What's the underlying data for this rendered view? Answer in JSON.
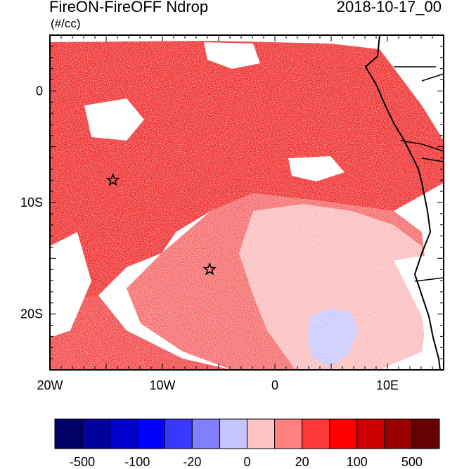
{
  "title": "FireON-FireOFF Ndrop",
  "date": "2018-10-17_00",
  "units": "(#/cc)",
  "map": {
    "lon_range": [
      -20,
      15
    ],
    "lat_range": [
      -25,
      5
    ],
    "lat_labels": [
      {
        "value": 0,
        "label": "0"
      },
      {
        "value": -10,
        "label": "10S"
      },
      {
        "value": -20,
        "label": "20S"
      }
    ],
    "lon_labels": [
      {
        "value": -20,
        "label": "20W"
      },
      {
        "value": -10,
        "label": "10W"
      },
      {
        "value": 0,
        "label": "0"
      },
      {
        "value": 10,
        "label": "10E"
      }
    ],
    "markers": [
      {
        "type": "star",
        "lon": -14.4,
        "lat": -8.0
      },
      {
        "type": "star",
        "lon": -5.8,
        "lat": -16.0
      }
    ],
    "colors": {
      "strong_red": "#ee2020",
      "mid_red": "#f56060",
      "light_pink": "#fbb8b8",
      "light_blue": "#c4c4ff",
      "blue": "#3030ff",
      "coast": "#000000"
    }
  },
  "colorbar": {
    "colors": [
      "#000066",
      "#00009a",
      "#0000cc",
      "#0000ff",
      "#3838ff",
      "#8080ff",
      "#c4c4ff",
      "#ffc4c4",
      "#ff8080",
      "#ff3838",
      "#ff0000",
      "#cc0000",
      "#9a0000",
      "#660000"
    ],
    "labels": [
      "-500",
      "-100",
      "-20",
      "0",
      "20",
      "100",
      "500"
    ]
  }
}
